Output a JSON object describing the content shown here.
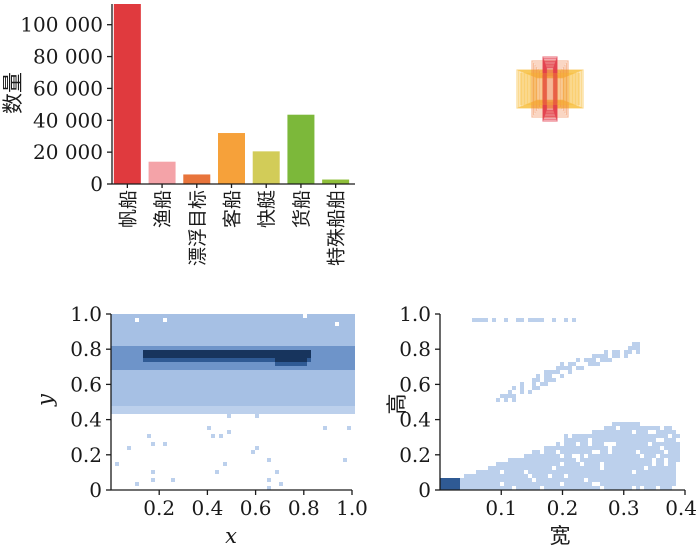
{
  "chart_data": [
    {
      "type": "bar",
      "title": "",
      "ylabel": "数量",
      "xlabel": "",
      "categories": [
        "帆船",
        "渔船",
        "漂浮目标",
        "客船",
        "快艇",
        "货船",
        "特殊船舶"
      ],
      "values": [
        113000,
        14000,
        6000,
        32000,
        20500,
        43500,
        2800
      ],
      "colors": [
        "#e03a3e",
        "#f4a3a8",
        "#e8743b",
        "#f6a13a",
        "#d2cc58",
        "#7cb83a",
        "#8fbf3a"
      ],
      "ylim": [
        0,
        113000
      ],
      "yticks": [
        0,
        20000,
        40000,
        60000,
        80000,
        100000
      ],
      "ytick_labels": [
        "0",
        "20 000",
        "40 000",
        "60 000",
        "80 000",
        "100 000"
      ],
      "grid": false,
      "legend": "none"
    },
    {
      "type": "heatmap",
      "title": "",
      "description": "bounding-box overlay centered near image center",
      "colors": [
        "#f6b21a",
        "#f07a3a",
        "#e23b4a"
      ],
      "grid": false
    },
    {
      "type": "heatmap",
      "title": "",
      "xlabel": "x",
      "ylabel": "y",
      "xlim": [
        0,
        1
      ],
      "ylim": [
        0,
        1
      ],
      "xticks": [
        "0.2",
        "0.4",
        "0.6",
        "0.8",
        "1.0"
      ],
      "yticks": [
        "0",
        "0.2",
        "0.4",
        "0.6",
        "0.8",
        "1.0"
      ],
      "density_peak": {
        "x_range": [
          0.15,
          0.8
        ],
        "y": 0.77
      },
      "colors": [
        "#bcd0ec",
        "#6e94c9",
        "#2f5a94",
        "#17345d"
      ],
      "grid": false
    },
    {
      "type": "heatmap",
      "title": "",
      "xlabel": "宽",
      "ylabel": "高",
      "xlim": [
        0,
        0.4
      ],
      "ylim": [
        0,
        1
      ],
      "xticks": [
        "0.1",
        "0.2",
        "0.3",
        "0.4"
      ],
      "yticks": [
        "0",
        "0.2",
        "0.4",
        "0.6",
        "0.8",
        "1.0"
      ],
      "density_peak": {
        "x": 0.01,
        "y": 0.03
      },
      "colors": [
        "#bcd0ec",
        "#2f5a94"
      ],
      "grid": false
    }
  ]
}
